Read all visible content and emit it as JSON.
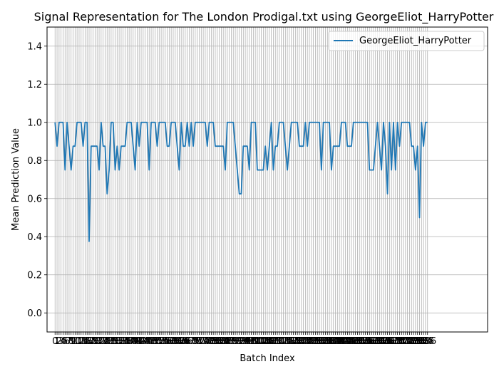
{
  "chart_data": {
    "type": "line",
    "title": "Signal Representation for The London Prodigal.txt using GeorgeEliot_HarryPotter",
    "xlabel": "Batch Index",
    "ylabel": "Mean Prediction Value",
    "xlim": [
      -4,
      216
    ],
    "ylim": [
      -0.1,
      1.5
    ],
    "yticks": [
      0.0,
      0.2,
      0.4,
      0.6,
      0.8,
      1.0,
      1.2,
      1.4
    ],
    "ytick_labels": [
      "0.0",
      "0.2",
      "0.4",
      "0.6",
      "0.8",
      "1.0",
      "1.2",
      "1.4"
    ],
    "grid": true,
    "legend_position": "top-right",
    "x_tick_step": 1,
    "series": [
      {
        "name": "GeorgeEliot_HarryPotter",
        "color": "#1f77b4",
        "values": [
          1.0,
          0.875,
          1.0,
          1.0,
          1.0,
          0.75,
          1.0,
          0.875,
          0.75,
          0.875,
          0.875,
          1.0,
          1.0,
          1.0,
          0.875,
          1.0,
          1.0,
          0.375,
          0.875,
          0.875,
          0.875,
          0.875,
          0.75,
          1.0,
          0.875,
          0.875,
          0.625,
          0.75,
          1.0,
          1.0,
          0.75,
          0.875,
          0.75,
          0.875,
          0.875,
          0.875,
          1.0,
          1.0,
          1.0,
          0.875,
          0.75,
          1.0,
          0.875,
          1.0,
          1.0,
          1.0,
          1.0,
          0.75,
          1.0,
          1.0,
          1.0,
          0.875,
          1.0,
          1.0,
          1.0,
          1.0,
          0.875,
          0.875,
          1.0,
          1.0,
          1.0,
          0.875,
          0.75,
          1.0,
          0.875,
          0.875,
          1.0,
          0.875,
          1.0,
          0.875,
          1.0,
          1.0,
          1.0,
          1.0,
          1.0,
          1.0,
          0.875,
          1.0,
          1.0,
          1.0,
          0.875,
          0.875,
          0.875,
          0.875,
          0.875,
          0.75,
          1.0,
          1.0,
          1.0,
          1.0,
          0.875,
          0.75,
          0.625,
          0.625,
          0.875,
          0.875,
          0.875,
          0.75,
          1.0,
          1.0,
          1.0,
          0.75,
          0.75,
          0.75,
          0.75,
          0.875,
          0.75,
          0.875,
          1.0,
          0.75,
          0.875,
          0.875,
          1.0,
          1.0,
          1.0,
          0.875,
          0.75,
          0.875,
          1.0,
          1.0,
          1.0,
          1.0,
          0.875,
          0.875,
          0.875,
          1.0,
          0.875,
          1.0,
          1.0,
          1.0,
          1.0,
          1.0,
          1.0,
          0.75,
          1.0,
          1.0,
          1.0,
          1.0,
          0.75,
          0.875,
          0.875,
          0.875,
          0.875,
          1.0,
          1.0,
          1.0,
          0.875,
          0.875,
          0.875,
          1.0,
          1.0,
          1.0,
          1.0,
          1.0,
          1.0,
          1.0,
          1.0,
          0.75,
          0.75,
          0.75,
          0.875,
          1.0,
          0.875,
          0.75,
          1.0,
          0.875,
          0.625,
          1.0,
          0.75,
          1.0,
          0.75,
          1.0,
          0.875,
          1.0,
          1.0,
          1.0,
          1.0,
          1.0,
          0.875,
          0.875,
          0.75,
          0.875,
          0.5,
          1.0,
          0.875,
          1.0,
          1.0
        ]
      }
    ]
  }
}
